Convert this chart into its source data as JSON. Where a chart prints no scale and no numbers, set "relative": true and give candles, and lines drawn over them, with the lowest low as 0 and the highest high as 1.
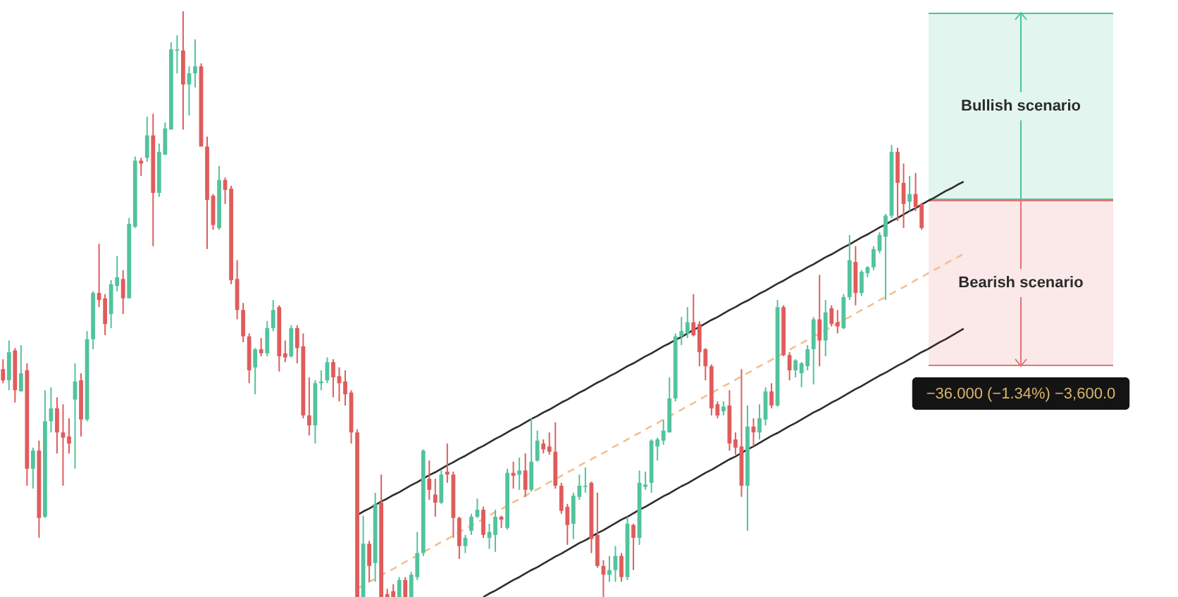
{
  "chart_data": {
    "type": "candlestick",
    "relative": true,
    "categories": [
      null,
      null,
      null,
      null,
      null,
      null,
      null,
      null,
      null,
      null,
      null,
      null,
      null,
      null,
      null,
      null,
      null,
      null,
      null,
      null,
      null,
      null,
      null,
      null,
      null,
      null,
      null,
      null,
      null,
      null,
      null,
      null,
      null,
      null,
      null,
      null,
      null,
      null,
      null,
      null,
      null,
      null,
      null,
      null,
      null,
      null,
      null,
      null,
      null,
      null,
      null,
      null,
      null,
      null,
      null,
      null,
      null,
      null,
      null,
      null,
      null,
      null,
      null,
      null,
      null,
      null,
      null,
      null,
      null,
      null,
      null,
      null,
      null,
      null,
      null,
      null,
      null,
      null,
      null,
      null,
      null,
      null,
      null,
      null,
      null,
      null,
      null,
      null,
      null,
      null,
      null,
      null,
      null,
      null,
      null,
      null,
      null,
      null,
      null,
      null,
      null,
      null,
      null,
      null,
      null,
      null,
      null,
      null,
      null,
      null,
      null,
      null,
      null,
      null,
      null,
      null,
      null,
      null,
      null,
      null,
      null,
      null,
      null,
      null,
      null,
      null,
      null,
      null,
      null,
      null,
      null,
      null,
      null,
      null,
      null,
      null,
      null,
      null,
      null,
      null,
      null,
      null,
      null,
      null,
      null,
      null,
      null,
      null,
      null,
      null,
      null,
      null,
      null,
      null,
      null,
      null,
      null,
      null,
      null,
      null,
      null
    ],
    "ohlc": [
      [
        0.389,
        0.406,
        0.365,
        0.37
      ],
      [
        0.37,
        0.438,
        0.353,
        0.418
      ],
      [
        0.421,
        0.425,
        0.332,
        0.353
      ],
      [
        0.351,
        0.43,
        0.351,
        0.382
      ],
      [
        0.387,
        0.399,
        0.19,
        0.219
      ],
      [
        0.219,
        0.255,
        0.185,
        0.25
      ],
      [
        0.25,
        0.267,
        0.101,
        0.135
      ],
      [
        0.137,
        0.353,
        0.135,
        0.3
      ],
      [
        0.3,
        0.358,
        0.281,
        0.322
      ],
      [
        0.322,
        0.341,
        0.245,
        0.281
      ],
      [
        0.281,
        0.329,
        0.19,
        0.272
      ],
      [
        0.274,
        0.305,
        0.245,
        0.262
      ],
      [
        0.337,
        0.399,
        0.219,
        0.368
      ],
      [
        0.37,
        0.382,
        0.274,
        0.303
      ],
      [
        0.303,
        0.454,
        0.3,
        0.44
      ],
      [
        0.44,
        0.522,
        0.423,
        0.519
      ],
      [
        0.519,
        0.603,
        0.495,
        0.507
      ],
      [
        0.51,
        0.517,
        0.447,
        0.466
      ],
      [
        0.483,
        0.541,
        0.459,
        0.534
      ],
      [
        0.531,
        0.582,
        0.522,
        0.546
      ],
      [
        0.543,
        0.558,
        0.483,
        0.51
      ],
      [
        0.51,
        0.647,
        0.51,
        0.637
      ],
      [
        0.632,
        0.752,
        0.63,
        0.745
      ],
      [
        0.745,
        0.75,
        0.719,
        0.74
      ],
      [
        0.75,
        0.82,
        0.743,
        0.788
      ],
      [
        0.788,
        0.825,
        0.599,
        0.69
      ],
      [
        0.69,
        0.774,
        0.683,
        0.76
      ],
      [
        0.755,
        0.81,
        0.755,
        0.8
      ],
      [
        0.798,
        0.947,
        0.798,
        0.935
      ],
      [
        0.933,
        0.959,
        0.894,
        0.935
      ],
      [
        0.933,
        1,
        0.798,
        0.875
      ],
      [
        0.875,
        0.906,
        0.822,
        0.894
      ],
      [
        0.894,
        0.952,
        0.87,
        0.906
      ],
      [
        0.906,
        0.911,
        0.769,
        0.769
      ],
      [
        0.769,
        0.786,
        0.594,
        0.678
      ],
      [
        0.685,
        0.688,
        0.627,
        0.635
      ],
      [
        0.63,
        0.736,
        0.627,
        0.712
      ],
      [
        0.712,
        0.716,
        0.671,
        0.695
      ],
      [
        0.697,
        0.702,
        0.534,
        0.541
      ],
      [
        0.543,
        0.575,
        0.474,
        0.49
      ],
      [
        0.49,
        0.502,
        0.435,
        0.445
      ],
      [
        0.445,
        0.45,
        0.365,
        0.387
      ],
      [
        0.392,
        0.425,
        0.346,
        0.423
      ],
      [
        0.423,
        0.442,
        0.411,
        0.416
      ],
      [
        0.416,
        0.471,
        0.411,
        0.459
      ],
      [
        0.459,
        0.507,
        0.454,
        0.49
      ],
      [
        0.495,
        0.498,
        0.385,
        0.411
      ],
      [
        0.416,
        0.438,
        0.401,
        0.409
      ],
      [
        0.411,
        0.464,
        0.409,
        0.459
      ],
      [
        0.459,
        0.464,
        0.399,
        0.425
      ],
      [
        0.428,
        0.45,
        0.305,
        0.31
      ],
      [
        0.31,
        0.375,
        0.276,
        0.293
      ],
      [
        0.293,
        0.37,
        0.262,
        0.365
      ],
      [
        0.365,
        0.387,
        0.353,
        0.368
      ],
      [
        0.37,
        0.409,
        0.365,
        0.401
      ],
      [
        0.401,
        0.406,
        0.341,
        0.375
      ],
      [
        0.377,
        0.392,
        0.334,
        0.365
      ],
      [
        0.368,
        0.387,
        0.327,
        0.346
      ],
      [
        0.349,
        0.353,
        0.262,
        0.281
      ],
      [
        0.281,
        0.286,
        0,
        0
      ],
      [
        0,
        0.139,
        0,
        0.091
      ],
      [
        0.091,
        0.096,
        0.026,
        0.053
      ],
      [
        0.058,
        0.178,
        0.026,
        0.159
      ],
      [
        0.161,
        0.209,
        0,
        0
      ],
      [
        0.005,
        0.014,
        0,
        0
      ],
      [
        0.01,
        0.022,
        0,
        0
      ],
      [
        0,
        0.034,
        0,
        0.029
      ],
      [
        0.029,
        0.034,
        0,
        0
      ],
      [
        0,
        0.043,
        0,
        0.038
      ],
      [
        0.034,
        0.111,
        0.029,
        0.075
      ],
      [
        0.075,
        0.252,
        0.07,
        0.25
      ],
      [
        0.202,
        0.233,
        0.166,
        0.183
      ],
      [
        0.175,
        0.202,
        0.137,
        0.161
      ],
      [
        0.161,
        0.216,
        0.159,
        0.209
      ],
      [
        0.214,
        0.262,
        0.195,
        0.209
      ],
      [
        0.209,
        0.214,
        0.101,
        0.135
      ],
      [
        0.135,
        0.137,
        0.065,
        0.087
      ],
      [
        0.087,
        0.106,
        0.075,
        0.101
      ],
      [
        0.113,
        0.142,
        0.106,
        0.137
      ],
      [
        0.137,
        0.168,
        0.135,
        0.149
      ],
      [
        0.149,
        0.154,
        0.101,
        0.106
      ],
      [
        0.101,
        0.125,
        0.082,
        0.111
      ],
      [
        0.106,
        0.149,
        0.077,
        0.137
      ],
      [
        0.137,
        0.139,
        0.118,
        0.132
      ],
      [
        0.118,
        0.219,
        0.115,
        0.212
      ],
      [
        0.212,
        0.231,
        0.185,
        0.207
      ],
      [
        0.209,
        0.238,
        0.183,
        0.216
      ],
      [
        0.216,
        0.245,
        0.171,
        0.183
      ],
      [
        0.183,
        0.305,
        0.18,
        0.231
      ],
      [
        0.233,
        0.284,
        0.231,
        0.267
      ],
      [
        0.262,
        0.269,
        0.245,
        0.252
      ],
      [
        0.257,
        0.281,
        0.243,
        0.248
      ],
      [
        0.248,
        0.298,
        0.185,
        0.19
      ],
      [
        0.19,
        0.195,
        0.142,
        0.147
      ],
      [
        0.154,
        0.159,
        0.089,
        0.123
      ],
      [
        0.125,
        0.178,
        0.099,
        0.173
      ],
      [
        0.171,
        0.209,
        0.166,
        0.19
      ],
      [
        0.188,
        0.221,
        0.178,
        0.19
      ],
      [
        0.195,
        0.197,
        0.075,
        0.099
      ],
      [
        0.106,
        0.178,
        0.05,
        0.053
      ],
      [
        0.053,
        0.063,
        0,
        0.038
      ],
      [
        0.038,
        0.07,
        0.026,
        0.046
      ],
      [
        0.046,
        0.087,
        0.026,
        0.07
      ],
      [
        0.07,
        0.075,
        0.026,
        0.034
      ],
      [
        0.034,
        0.137,
        0.029,
        0.125
      ],
      [
        0.123,
        0.125,
        0.046,
        0.101
      ],
      [
        0.101,
        0.216,
        0.089,
        0.195
      ],
      [
        0.188,
        0.214,
        0.183,
        0.192
      ],
      [
        0.195,
        0.269,
        0.178,
        0.267
      ],
      [
        0.257,
        0.272,
        0.233,
        0.269
      ],
      [
        0.267,
        0.303,
        0.26,
        0.284
      ],
      [
        0.281,
        0.375,
        0.281,
        0.339
      ],
      [
        0.339,
        0.45,
        0.334,
        0.445
      ],
      [
        0.445,
        0.478,
        0.43,
        0.454
      ],
      [
        0.45,
        0.495,
        0.442,
        0.469
      ],
      [
        0.469,
        0.517,
        0.445,
        0.447
      ],
      [
        0.466,
        0.471,
        0.394,
        0.418
      ],
      [
        0.423,
        0.425,
        0.37,
        0.394
      ],
      [
        0.394,
        0.397,
        0.31,
        0.322
      ],
      [
        0.329,
        0.334,
        0.305,
        0.31
      ],
      [
        0.317,
        0.334,
        0.31,
        0.325
      ],
      [
        0.327,
        0.353,
        0.25,
        0.262
      ],
      [
        0.269,
        0.281,
        0.243,
        0.255
      ],
      [
        0.257,
        0.389,
        0.171,
        0.19
      ],
      [
        0.19,
        0.327,
        0.113,
        0.291
      ],
      [
        0.291,
        0.305,
        0.257,
        0.281
      ],
      [
        0.281,
        0.329,
        0.269,
        0.305
      ],
      [
        0.303,
        0.358,
        0.293,
        0.351
      ],
      [
        0.351,
        0.365,
        0.322,
        0.327
      ],
      [
        0.327,
        0.507,
        0.325,
        0.495
      ],
      [
        0.495,
        0.498,
        0.411,
        0.413
      ],
      [
        0.413,
        0.418,
        0.37,
        0.387
      ],
      [
        0.387,
        0.406,
        0.375,
        0.404
      ],
      [
        0.382,
        0.401,
        0.358,
        0.399
      ],
      [
        0.394,
        0.43,
        0.387,
        0.423
      ],
      [
        0.423,
        0.478,
        0.363,
        0.474
      ],
      [
        0.474,
        0.55,
        0.394,
        0.438
      ],
      [
        0.438,
        0.507,
        0.411,
        0.486
      ],
      [
        0.493,
        0.498,
        0.462,
        0.466
      ],
      [
        0.469,
        0.49,
        0.45,
        0.462
      ],
      [
        0.459,
        0.517,
        0.457,
        0.512
      ],
      [
        0.512,
        0.618,
        0.507,
        0.575
      ],
      [
        0.572,
        0.599,
        0.498,
        0.519
      ],
      [
        0.519,
        0.558,
        0.514,
        0.555
      ],
      [
        0.553,
        0.565,
        0.546,
        0.563
      ],
      [
        0.563,
        0.599,
        0.558,
        0.594
      ],
      [
        0.591,
        0.623,
        0.587,
        0.618
      ],
      [
        0.615,
        0.654,
        0.507,
        0.651
      ],
      [
        0.651,
        0.772,
        0.647,
        0.76
      ],
      [
        0.76,
        0.767,
        0.642,
        0.707
      ],
      [
        0.707,
        0.74,
        0.63,
        0.671
      ],
      [
        0.675,
        0.719,
        0.659,
        0.688
      ],
      [
        0.688,
        0.724,
        0.659,
        0.666
      ],
      [
        0.671,
        0.673,
        0.627,
        0.63
      ],
      null,
      null,
      null,
      null,
      null,
      null,
      null
    ],
    "colors": [
      "#e05c5c",
      "#52c39d",
      "#e05c5c",
      "#52c39d",
      "#e05c5c",
      "#52c39d",
      "#e05c5c",
      "#52c39d",
      "#52c39d",
      "#e05c5c",
      "#e05c5c",
      "#e05c5c",
      "#52c39d",
      "#e05c5c",
      "#52c39d",
      "#52c39d",
      "#e05c5c",
      "#e05c5c",
      "#52c39d",
      "#52c39d",
      "#e05c5c",
      "#52c39d",
      "#52c39d",
      "#e05c5c",
      "#52c39d",
      "#e05c5c",
      "#52c39d",
      "#52c39d",
      "#52c39d",
      "#52c39d",
      "#e05c5c",
      "#52c39d",
      "#52c39d",
      "#e05c5c",
      "#e05c5c",
      "#e05c5c",
      "#52c39d",
      "#e05c5c",
      "#e05c5c",
      "#e05c5c",
      "#e05c5c",
      "#e05c5c",
      "#52c39d",
      "#e05c5c",
      "#52c39d",
      "#52c39d",
      "#e05c5c",
      "#e05c5c",
      "#52c39d",
      "#e05c5c",
      "#e05c5c",
      "#e05c5c",
      "#52c39d",
      "#52c39d",
      "#52c39d",
      "#e05c5c",
      "#e05c5c",
      "#e05c5c",
      "#e05c5c",
      "#e05c5c",
      "#52c39d",
      "#e05c5c",
      "#52c39d",
      "#e05c5c",
      "#e05c5c",
      "#e05c5c",
      "#52c39d",
      "#e05c5c",
      "#52c39d",
      "#52c39d",
      "#52c39d",
      "#e05c5c",
      "#e05c5c",
      "#52c39d",
      "#e05c5c",
      "#e05c5c",
      "#e05c5c",
      "#52c39d",
      "#52c39d",
      "#52c39d",
      "#e05c5c",
      "#52c39d",
      "#52c39d",
      "#e05c5c",
      "#52c39d",
      "#e05c5c",
      "#52c39d",
      "#e05c5c",
      "#52c39d",
      "#52c39d",
      "#e05c5c",
      "#e05c5c",
      "#e05c5c",
      "#e05c5c",
      "#e05c5c",
      "#52c39d",
      "#52c39d",
      "#52c39d",
      "#e05c5c",
      "#e05c5c",
      "#e05c5c",
      "#52c39d",
      "#52c39d",
      "#e05c5c",
      "#52c39d",
      "#e05c5c",
      "#52c39d",
      "#52c39d",
      "#52c39d",
      "#52c39d",
      "#52c39d",
      "#52c39d",
      "#52c39d",
      "#52c39d",
      "#52c39d",
      "#e05c5c",
      "#e05c5c",
      "#e05c5c",
      "#e05c5c",
      "#e05c5c",
      "#52c39d",
      "#e05c5c",
      "#e05c5c",
      "#e05c5c",
      "#52c39d",
      "#e05c5c",
      "#52c39d",
      "#52c39d",
      "#e05c5c",
      "#52c39d",
      "#e05c5c",
      "#e05c5c",
      "#52c39d",
      "#52c39d",
      "#52c39d",
      "#52c39d",
      "#e05c5c",
      "#52c39d",
      "#e05c5c",
      "#e05c5c",
      "#52c39d",
      "#52c39d",
      "#e05c5c",
      "#52c39d",
      "#52c39d",
      "#52c39d",
      "#52c39d",
      "#52c39d",
      "#52c39d",
      "#e05c5c",
      "#e05c5c",
      "#52c39d",
      "#e05c5c",
      "#e05c5c",
      null,
      null,
      null,
      null,
      null,
      null,
      null
    ],
    "series": [
      {
        "type": "line",
        "color": "#2e2e2e",
        "line_style": "solid",
        "values": [
          null,
          null,
          null,
          null,
          null,
          null,
          null,
          null,
          null,
          null,
          null,
          null,
          null,
          null,
          null,
          null,
          null,
          null,
          null,
          null,
          null,
          null,
          null,
          null,
          null,
          null,
          null,
          null,
          null,
          null,
          null,
          null,
          null,
          null,
          null,
          null,
          null,
          null,
          null,
          null,
          null,
          null,
          null,
          null,
          null,
          null,
          null,
          null,
          null,
          null,
          null,
          null,
          null,
          null,
          null,
          null,
          null,
          null,
          null,
          0.14,
          0.146,
          0.151,
          0.157,
          0.163,
          0.168,
          0.174,
          0.179,
          0.185,
          0.191,
          0.196,
          0.202,
          0.208,
          0.213,
          0.219,
          0.225,
          0.23,
          0.236,
          0.241,
          0.247,
          0.253,
          0.258,
          0.264,
          0.27,
          0.275,
          0.281,
          0.287,
          0.292,
          0.298,
          0.304,
          0.309,
          0.315,
          0.32,
          0.326,
          0.332,
          0.337,
          0.343,
          0.349,
          0.354,
          0.36,
          0.366,
          0.371,
          0.377,
          0.382,
          0.388,
          0.394,
          0.399,
          0.405,
          0.411,
          0.416,
          0.422,
          0.428,
          0.433,
          0.439,
          0.444,
          0.45,
          0.456,
          0.461,
          0.467,
          0.473,
          0.478,
          0.484,
          0.49,
          0.495,
          0.501,
          0.506,
          0.512,
          0.518,
          0.523,
          0.529,
          0.535,
          0.54,
          0.546,
          0.552,
          0.557,
          0.563,
          0.568,
          0.574,
          0.58,
          0.585,
          0.591,
          0.597,
          0.602,
          0.608,
          0.614,
          0.619,
          0.625,
          0.631,
          0.636,
          0.642,
          0.647,
          0.653,
          0.659,
          0.664,
          0.67,
          0.676,
          0.681,
          0.687,
          0.693,
          0.698,
          0.704,
          0.709
        ]
      },
      {
        "type": "line",
        "color": "#f3c08f",
        "line_style": "dashed",
        "values": [
          null,
          null,
          null,
          null,
          null,
          null,
          null,
          null,
          null,
          null,
          null,
          null,
          null,
          null,
          null,
          null,
          null,
          null,
          null,
          null,
          null,
          null,
          null,
          null,
          null,
          null,
          null,
          null,
          null,
          null,
          null,
          null,
          null,
          null,
          null,
          null,
          null,
          null,
          null,
          null,
          null,
          null,
          null,
          null,
          null,
          null,
          null,
          null,
          null,
          null,
          null,
          null,
          null,
          null,
          null,
          null,
          null,
          null,
          null,
          0.014,
          0.02,
          0.026,
          0.031,
          0.037,
          0.043,
          0.048,
          0.054,
          0.06,
          0.065,
          0.071,
          0.077,
          0.082,
          0.088,
          0.094,
          0.099,
          0.105,
          0.111,
          0.116,
          0.122,
          0.128,
          0.133,
          0.139,
          0.145,
          0.15,
          0.156,
          0.162,
          0.167,
          0.173,
          0.179,
          0.184,
          0.19,
          0.196,
          0.201,
          0.207,
          0.213,
          0.218,
          0.224,
          0.23,
          0.235,
          0.241,
          0.246,
          0.252,
          0.258,
          0.263,
          0.269,
          0.275,
          0.28,
          0.286,
          0.292,
          0.297,
          0.303,
          0.309,
          0.314,
          0.32,
          0.326,
          0.331,
          0.337,
          0.343,
          0.348,
          0.354,
          0.36,
          0.365,
          0.371,
          0.377,
          0.382,
          0.388,
          0.394,
          0.399,
          0.405,
          0.411,
          0.416,
          0.422,
          0.428,
          0.433,
          0.439,
          0.444,
          0.45,
          0.456,
          0.461,
          0.467,
          0.473,
          0.478,
          0.484,
          0.49,
          0.495,
          0.501,
          0.507,
          0.512,
          0.518,
          0.524,
          0.529,
          0.535,
          0.541,
          0.546,
          0.552,
          0.558,
          0.563,
          0.569,
          0.575,
          0.58,
          0.586
        ]
      },
      {
        "type": "line",
        "color": "#2e2e2e",
        "line_style": "solid",
        "values": [
          null,
          null,
          null,
          null,
          null,
          null,
          null,
          null,
          null,
          null,
          null,
          null,
          null,
          null,
          null,
          null,
          null,
          null,
          null,
          null,
          null,
          null,
          null,
          null,
          null,
          null,
          null,
          null,
          null,
          null,
          null,
          null,
          null,
          null,
          null,
          null,
          null,
          null,
          null,
          null,
          null,
          null,
          null,
          null,
          null,
          null,
          null,
          null,
          null,
          null,
          null,
          null,
          null,
          null,
          null,
          null,
          null,
          null,
          null,
          null,
          null,
          null,
          null,
          null,
          null,
          null,
          null,
          null,
          null,
          null,
          null,
          null,
          null,
          null,
          null,
          null,
          null,
          null,
          null,
          null,
          0,
          0.006,
          0.011,
          0.017,
          0.023,
          0.029,
          0.034,
          0.04,
          0.046,
          0.051,
          0.057,
          0.063,
          0.069,
          0.074,
          0.08,
          0.086,
          0.092,
          0.097,
          0.103,
          0.109,
          0.114,
          0.12,
          0.126,
          0.132,
          0.137,
          0.143,
          0.149,
          0.154,
          0.16,
          0.166,
          0.172,
          0.177,
          0.183,
          0.189,
          0.194,
          0.2,
          0.206,
          0.212,
          0.217,
          0.223,
          0.229,
          0.235,
          0.24,
          0.246,
          0.252,
          0.257,
          0.263,
          0.269,
          0.275,
          0.28,
          0.286,
          0.292,
          0.297,
          0.303,
          0.309,
          0.315,
          0.32,
          0.326,
          0.332,
          0.337,
          0.343,
          0.349,
          0.355,
          0.36,
          0.366,
          0.372,
          0.378,
          0.383,
          0.389,
          0.395,
          0.4,
          0.406,
          0.412,
          0.418,
          0.423,
          0.429,
          0.435,
          0.44,
          0.446,
          0.452,
          0.458
        ]
      }
    ],
    "annotations": [
      "Bullish scenario",
      "Bearish scenario",
      "−36.000 (−1.34%) −3,600.0"
    ]
  }
}
